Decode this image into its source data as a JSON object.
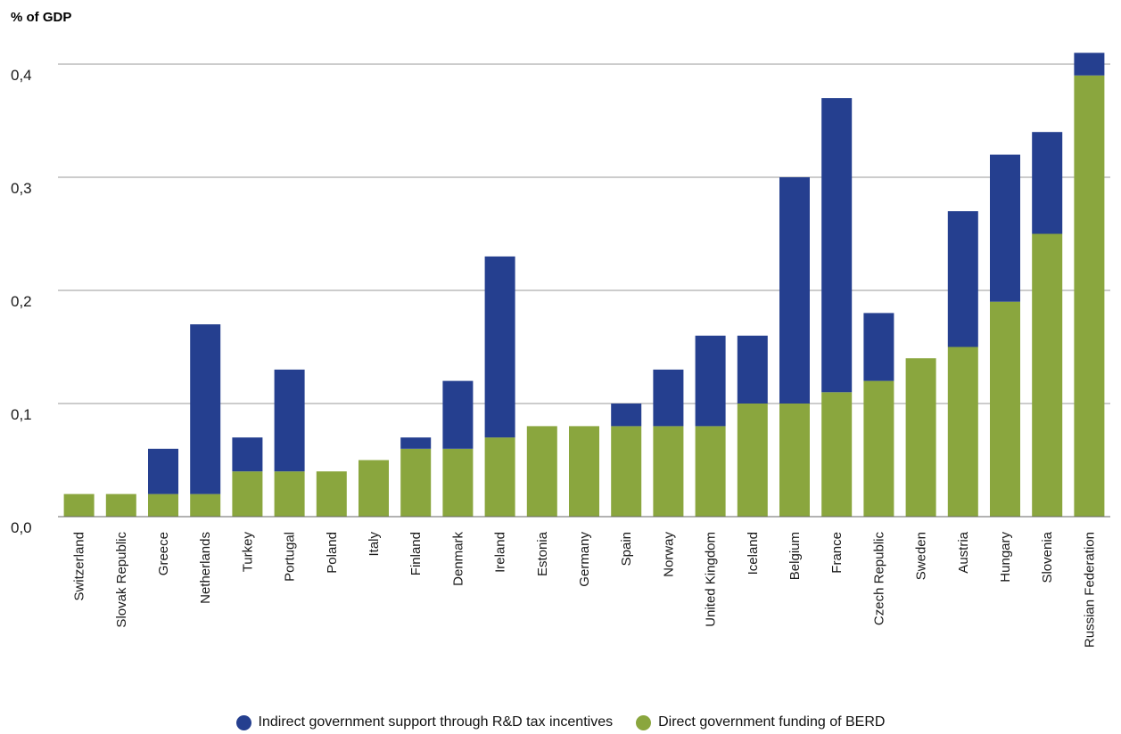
{
  "chart_data": {
    "type": "bar",
    "stacked": true,
    "ylabel": "% of GDP",
    "ylim": [
      0,
      0.4
    ],
    "yticks": [
      "0,0",
      "0,1",
      "0,2",
      "0,3",
      "0,4"
    ],
    "grid": true,
    "legend_position": "bottom",
    "categories": [
      "Switzerland",
      "Slovak Republic",
      "Greece",
      "Netherlands",
      "Turkey",
      "Portugal",
      "Poland",
      "Italy",
      "Finland",
      "Denmark",
      "Ireland",
      "Estonia",
      "Germany",
      "Spain",
      "Norway",
      "United Kingdom",
      "Iceland",
      "Belgium",
      "France",
      "Czech Republic",
      "Sweden",
      "Austria",
      "Hungary",
      "Slovenia",
      "Russian Federation"
    ],
    "series": [
      {
        "name": "Direct government funding of BERD",
        "color": "#8aa63e",
        "values": [
          0.02,
          0.02,
          0.02,
          0.02,
          0.04,
          0.04,
          0.04,
          0.05,
          0.06,
          0.06,
          0.07,
          0.08,
          0.08,
          0.08,
          0.08,
          0.08,
          0.1,
          0.1,
          0.11,
          0.12,
          0.14,
          0.15,
          0.19,
          0.25,
          0.39
        ]
      },
      {
        "name": "Indirect government support through R&D tax incentives",
        "color": "#253f8f",
        "values": [
          0.0,
          0.0,
          0.04,
          0.15,
          0.03,
          0.09,
          0.0,
          0.0,
          0.01,
          0.06,
          0.16,
          0.0,
          0.0,
          0.02,
          0.05,
          0.08,
          0.06,
          0.2,
          0.26,
          0.06,
          0.0,
          0.12,
          0.13,
          0.09,
          0.02
        ]
      }
    ],
    "legend": [
      "Indirect government support through R&D tax incentives",
      "Direct government funding of BERD"
    ]
  }
}
